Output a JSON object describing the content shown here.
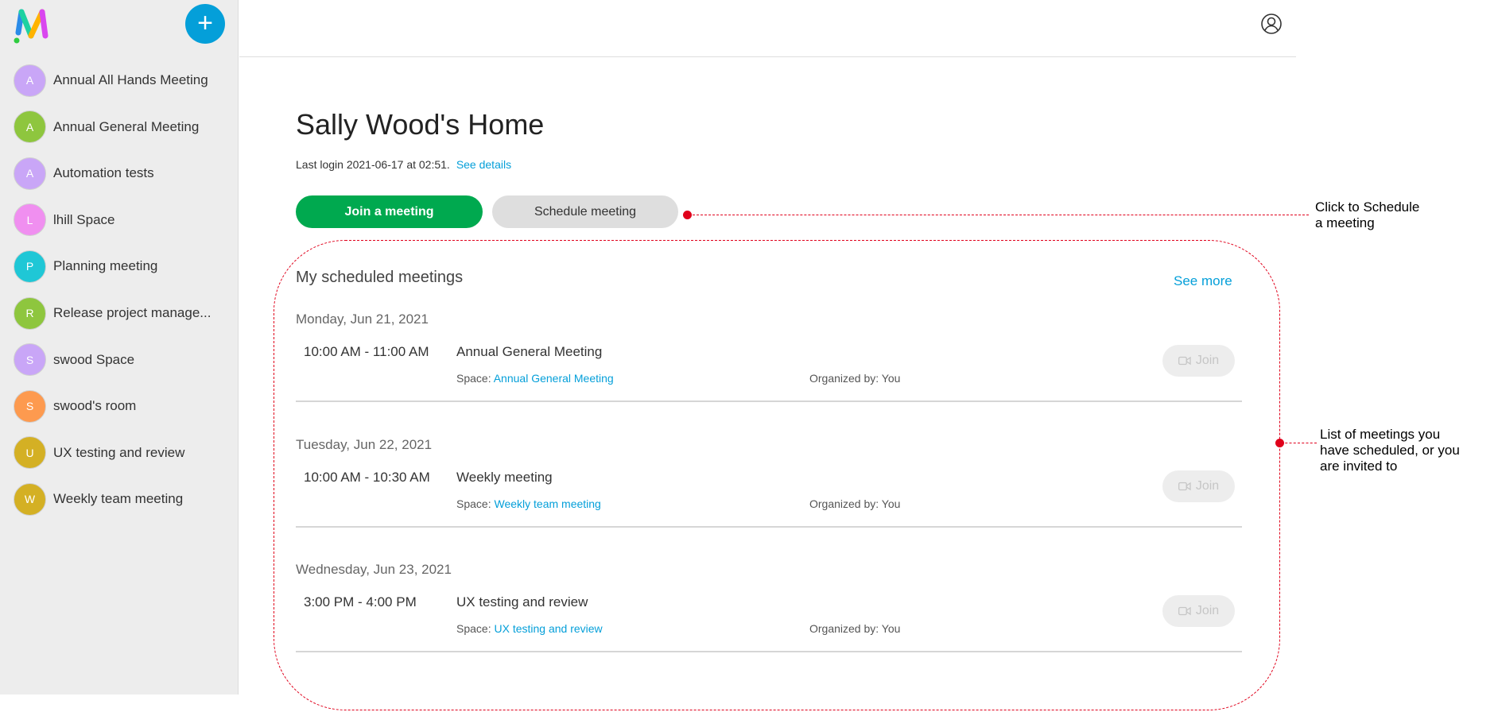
{
  "sidebar": {
    "new_button": "+",
    "items": [
      {
        "initial": "A",
        "label": "Annual All Hands Meeting",
        "color": "#c9a6f7"
      },
      {
        "initial": "A",
        "label": "Annual General Meeting",
        "color": "#8ec63e"
      },
      {
        "initial": "A",
        "label": "Automation tests",
        "color": "#c9a6f7"
      },
      {
        "initial": "L",
        "label": "lhill Space",
        "color": "#f08ff0"
      },
      {
        "initial": "P",
        "label": "Planning meeting",
        "color": "#1fc7d6"
      },
      {
        "initial": "R",
        "label": "Release project manage...",
        "color": "#8ec63e"
      },
      {
        "initial": "S",
        "label": "swood Space",
        "color": "#c9a6f7"
      },
      {
        "initial": "S",
        "label": "swood's room",
        "color": "#fd9a4f"
      },
      {
        "initial": "U",
        "label": "UX testing and review",
        "color": "#d4b024"
      },
      {
        "initial": "W",
        "label": "Weekly team meeting",
        "color": "#d4b024"
      }
    ]
  },
  "main": {
    "title": "Sally Wood's Home",
    "last_login": "Last login 2021-06-17 at 02:51.",
    "see_details": "See details",
    "join_button": "Join a meeting",
    "schedule_button": "Schedule meeting",
    "section_title": "My scheduled meetings",
    "see_more": "See more",
    "days": [
      {
        "date": "Monday, Jun 21, 2021",
        "time": "10:00 AM - 11:00 AM",
        "title": "Annual General Meeting",
        "space_label": "Space:",
        "space": "Annual General Meeting",
        "organizer": "Organized by: You",
        "join": "Join"
      },
      {
        "date": "Tuesday, Jun 22, 2021",
        "time": "10:00 AM - 10:30 AM",
        "title": "Weekly meeting",
        "space_label": "Space:",
        "space": "Weekly team meeting",
        "organizer": "Organized by: You",
        "join": "Join"
      },
      {
        "date": "Wednesday, Jun 23, 2021",
        "time": "3:00 PM - 4:00 PM",
        "title": "UX testing and review",
        "space_label": "Space:",
        "space": "UX testing and review",
        "organizer": "Organized by: You",
        "join": "Join"
      }
    ]
  },
  "annotations": {
    "schedule_note_1": "Click to Schedule",
    "schedule_note_2": "a meeting",
    "list_note_1": "List of meetings you",
    "list_note_2": "have scheduled, or you",
    "list_note_3": "are invited to",
    "color": "#e0001b"
  }
}
